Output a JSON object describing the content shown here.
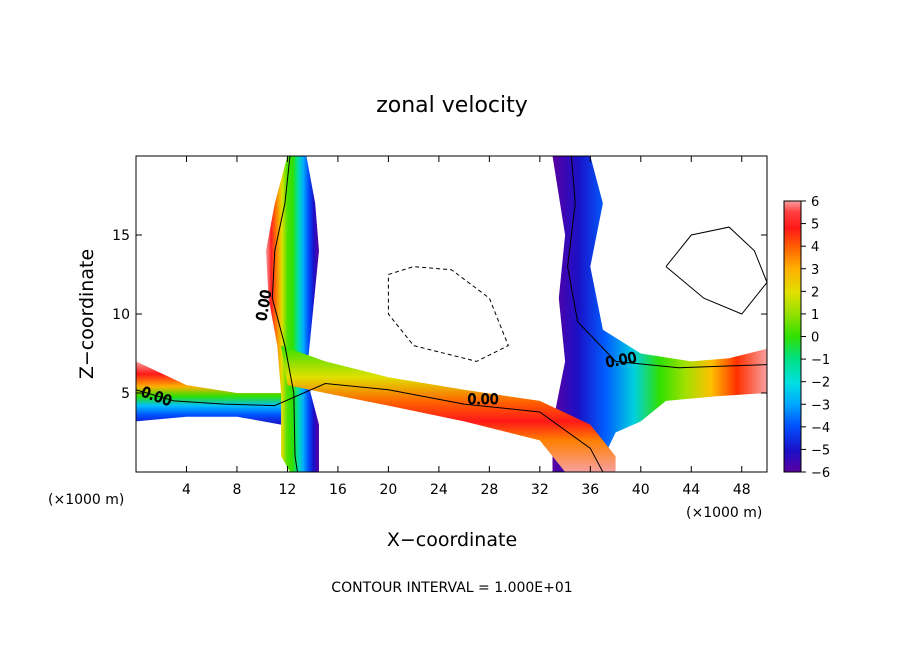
{
  "chart_data": {
    "type": "heatmap",
    "title": "zonal velocity",
    "xlabel": "X−coordinate",
    "ylabel": "Z−coordinate",
    "x_unit_left": "(×1000 m)",
    "x_unit_right": "(×1000 m)",
    "footer": "CONTOUR INTERVAL = 1.000E+01",
    "xlim": [
      0,
      50
    ],
    "ylim": [
      0,
      20
    ],
    "x_ticks": [
      4,
      8,
      12,
      16,
      20,
      24,
      28,
      32,
      36,
      40,
      44,
      48
    ],
    "y_ticks": [
      5,
      10,
      15
    ],
    "colorbar": {
      "min": -6,
      "max": 6,
      "ticks": [
        6,
        5,
        4,
        3,
        2,
        1,
        0,
        -1,
        -2,
        -3,
        -4,
        -5,
        -6
      ],
      "tick_labels": [
        "6",
        "5",
        "4",
        "3",
        "2",
        "1",
        "0",
        "−1",
        "−2",
        "−3",
        "−4",
        "−5",
        "−6"
      ],
      "colors": [
        "#5a00a0",
        "#1a10c8",
        "#0050ff",
        "#00a8ff",
        "#00e0e0",
        "#00e080",
        "#30e000",
        "#90e000",
        "#e0e000",
        "#ffb000",
        "#ff6000",
        "#ff1818",
        "#ff4040",
        "#f7a0a0"
      ]
    },
    "contour_labels": [
      {
        "text": "0.00",
        "x": 10.5,
        "y": 10.5,
        "rotate": -80
      },
      {
        "text": "0.00",
        "x": 1.5,
        "y": 4.5,
        "rotate": 20
      },
      {
        "text": "0.00",
        "x": 27.5,
        "y": 4.3,
        "rotate": 0
      },
      {
        "text": "0.00",
        "x": 38.5,
        "y": 6.8,
        "rotate": -10
      }
    ],
    "bands": [
      {
        "name": "band-left",
        "pts": [
          [
            13.5,
            20
          ],
          [
            12,
            20
          ],
          [
            11,
            17
          ],
          [
            10.3,
            14
          ],
          [
            10.5,
            11
          ],
          [
            11.2,
            8
          ],
          [
            11.5,
            5
          ],
          [
            11.5,
            1
          ],
          [
            12.2,
            0
          ],
          [
            14.5,
            0
          ],
          [
            14.5,
            3
          ],
          [
            13.5,
            6
          ],
          [
            14,
            10
          ],
          [
            14.5,
            14
          ],
          [
            14.2,
            17
          ]
        ],
        "side": "pos"
      },
      {
        "name": "band-right",
        "pts": [
          [
            33,
            20
          ],
          [
            36,
            20
          ],
          [
            37,
            17
          ],
          [
            36,
            13
          ],
          [
            37,
            9
          ],
          [
            40,
            7.5
          ],
          [
            44,
            7
          ],
          [
            47,
            7.2
          ],
          [
            50,
            7.8
          ],
          [
            50,
            5
          ],
          [
            46,
            4.8
          ],
          [
            42,
            4.5
          ],
          [
            40,
            3.2
          ],
          [
            38,
            2.5
          ],
          [
            36.5,
            0
          ],
          [
            33,
            0
          ],
          [
            33,
            3
          ],
          [
            34,
            7
          ],
          [
            33.5,
            11
          ],
          [
            34,
            15
          ]
        ],
        "side": "pos"
      },
      {
        "name": "band-diag",
        "pts": [
          [
            11.5,
            8
          ],
          [
            15,
            7
          ],
          [
            20,
            6
          ],
          [
            26,
            5.2
          ],
          [
            32,
            4.5
          ],
          [
            36,
            3
          ],
          [
            38,
            1
          ],
          [
            38,
            0
          ],
          [
            34,
            0
          ],
          [
            32,
            2
          ],
          [
            26,
            3.2
          ],
          [
            20,
            4.2
          ],
          [
            15,
            5
          ],
          [
            12,
            5.5
          ]
        ],
        "side": "pos"
      },
      {
        "name": "band-bottom",
        "pts": [
          [
            0,
            7
          ],
          [
            4,
            5.5
          ],
          [
            8,
            5
          ],
          [
            11.5,
            5
          ],
          [
            11.5,
            3
          ],
          [
            8,
            3.5
          ],
          [
            4,
            3.5
          ],
          [
            0,
            3.2
          ]
        ],
        "side": "pos"
      }
    ]
  }
}
